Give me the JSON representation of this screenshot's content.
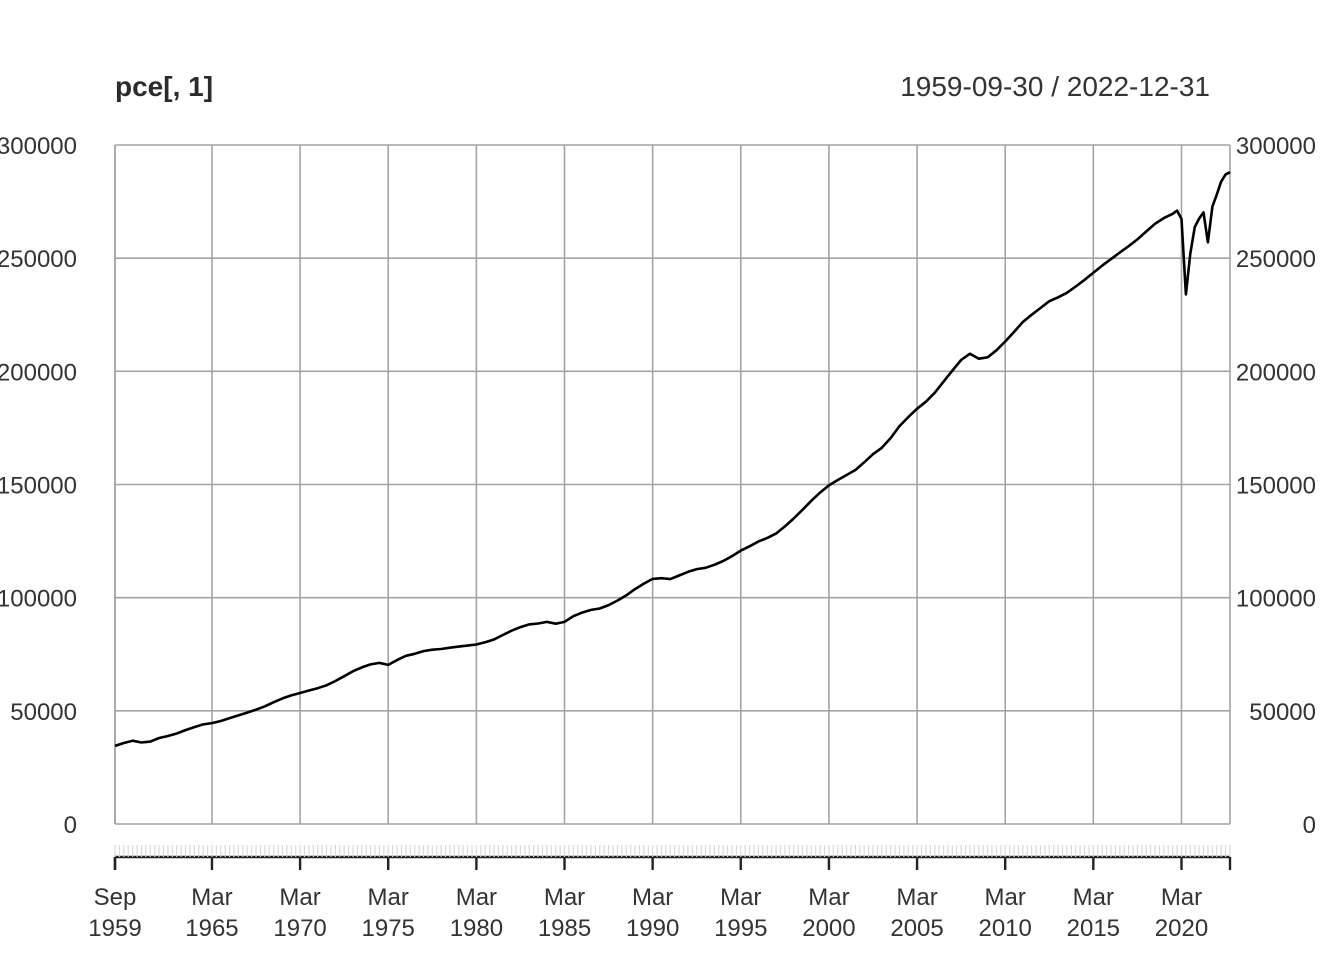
{
  "chart_data": {
    "type": "line",
    "title": "pce[, 1]",
    "date_range_label": "1959-09-30 / 2022-12-31",
    "x_range": [
      "1959-09-30",
      "2022-12-31"
    ],
    "ylim": [
      0,
      300000
    ],
    "y_ticks": [
      {
        "value": 0,
        "left": "0",
        "right": "0"
      },
      {
        "value": 50000,
        "left": "50000",
        "right": "50000"
      },
      {
        "value": 100000,
        "left": "100000",
        "right": "100000"
      },
      {
        "value": 150000,
        "left": "150000",
        "right": "150000"
      },
      {
        "value": 200000,
        "left": "200000",
        "right": "200000"
      },
      {
        "value": 250000,
        "left": "250000",
        "right": "250000"
      },
      {
        "value": 300000,
        "left": "300000",
        "right": "300000"
      }
    ],
    "x_ticks": [
      {
        "date": "1959-09-30",
        "line1": "Sep",
        "line2": "1959"
      },
      {
        "date": "1965-03-31",
        "line1": "Mar",
        "line2": "1965"
      },
      {
        "date": "1970-03-31",
        "line1": "Mar",
        "line2": "1970"
      },
      {
        "date": "1975-03-31",
        "line1": "Mar",
        "line2": "1975"
      },
      {
        "date": "1980-03-31",
        "line1": "Mar",
        "line2": "1980"
      },
      {
        "date": "1985-03-31",
        "line1": "Mar",
        "line2": "1985"
      },
      {
        "date": "1990-03-31",
        "line1": "Mar",
        "line2": "1990"
      },
      {
        "date": "1995-03-31",
        "line1": "Mar",
        "line2": "1995"
      },
      {
        "date": "2000-03-31",
        "line1": "Mar",
        "line2": "2000"
      },
      {
        "date": "2005-03-31",
        "line1": "Mar",
        "line2": "2005"
      },
      {
        "date": "2010-03-31",
        "line1": "Mar",
        "line2": "2010"
      },
      {
        "date": "2015-03-31",
        "line1": "Mar",
        "line2": "2015"
      },
      {
        "date": "2020-03-31",
        "line1": "Mar",
        "line2": "2020"
      }
    ],
    "series": [
      {
        "color": "#000000",
        "points": [
          [
            "1959-09-30",
            34500
          ],
          [
            "1960-03-31",
            35800
          ],
          [
            "1960-09-30",
            36800
          ],
          [
            "1961-03-31",
            36000
          ],
          [
            "1961-09-30",
            36400
          ],
          [
            "1962-03-31",
            38000
          ],
          [
            "1962-09-30",
            38900
          ],
          [
            "1963-03-31",
            40000
          ],
          [
            "1963-09-30",
            41500
          ],
          [
            "1964-03-31",
            42800
          ],
          [
            "1964-09-30",
            44000
          ],
          [
            "1965-03-31",
            44600
          ],
          [
            "1965-09-30",
            45500
          ],
          [
            "1966-03-31",
            46800
          ],
          [
            "1966-09-30",
            48000
          ],
          [
            "1967-03-31",
            49200
          ],
          [
            "1967-09-30",
            50500
          ],
          [
            "1968-03-31",
            52000
          ],
          [
            "1968-09-30",
            53800
          ],
          [
            "1969-03-31",
            55500
          ],
          [
            "1969-09-30",
            56800
          ],
          [
            "1970-03-31",
            57900
          ],
          [
            "1970-09-30",
            59000
          ],
          [
            "1971-03-31",
            60000
          ],
          [
            "1971-09-30",
            61300
          ],
          [
            "1972-03-31",
            63200
          ],
          [
            "1972-09-30",
            65300
          ],
          [
            "1973-03-31",
            67500
          ],
          [
            "1973-09-30",
            69200
          ],
          [
            "1974-03-31",
            70500
          ],
          [
            "1974-09-30",
            71200
          ],
          [
            "1975-03-31",
            70300
          ],
          [
            "1975-09-30",
            72400
          ],
          [
            "1976-03-31",
            74300
          ],
          [
            "1976-09-30",
            75200
          ],
          [
            "1977-03-31",
            76400
          ],
          [
            "1977-09-30",
            77000
          ],
          [
            "1978-03-31",
            77300
          ],
          [
            "1978-09-30",
            77900
          ],
          [
            "1979-03-31",
            78400
          ],
          [
            "1979-09-30",
            78800
          ],
          [
            "1980-03-31",
            79300
          ],
          [
            "1980-09-30",
            80300
          ],
          [
            "1981-03-31",
            81500
          ],
          [
            "1981-09-30",
            83500
          ],
          [
            "1982-03-31",
            85400
          ],
          [
            "1982-09-30",
            87000
          ],
          [
            "1983-03-31",
            88200
          ],
          [
            "1983-09-30",
            88600
          ],
          [
            "1984-03-31",
            89300
          ],
          [
            "1984-09-30",
            88500
          ],
          [
            "1985-03-31",
            89300
          ],
          [
            "1985-09-30",
            91800
          ],
          [
            "1986-03-31",
            93400
          ],
          [
            "1986-09-30",
            94600
          ],
          [
            "1987-03-31",
            95200
          ],
          [
            "1987-09-30",
            96700
          ],
          [
            "1988-03-31",
            98700
          ],
          [
            "1988-09-30",
            101000
          ],
          [
            "1989-03-31",
            103800
          ],
          [
            "1989-09-30",
            106200
          ],
          [
            "1990-03-31",
            108300
          ],
          [
            "1990-09-30",
            108600
          ],
          [
            "1991-03-31",
            108200
          ],
          [
            "1991-09-30",
            109800
          ],
          [
            "1992-03-31",
            111400
          ],
          [
            "1992-09-30",
            112600
          ],
          [
            "1993-03-31",
            113200
          ],
          [
            "1993-09-30",
            114500
          ],
          [
            "1994-03-31",
            116200
          ],
          [
            "1994-09-30",
            118300
          ],
          [
            "1995-03-31",
            120800
          ],
          [
            "1995-09-30",
            122700
          ],
          [
            "1996-03-31",
            124800
          ],
          [
            "1996-09-30",
            126400
          ],
          [
            "1997-03-31",
            128300
          ],
          [
            "1997-09-30",
            131500
          ],
          [
            "1998-03-31",
            135000
          ],
          [
            "1998-09-30",
            138800
          ],
          [
            "1999-03-31",
            142800
          ],
          [
            "1999-09-30",
            146400
          ],
          [
            "2000-03-31",
            149600
          ],
          [
            "2000-09-30",
            152000
          ],
          [
            "2001-03-31",
            154200
          ],
          [
            "2001-09-30",
            156400
          ],
          [
            "2002-03-31",
            159800
          ],
          [
            "2002-09-30",
            163400
          ],
          [
            "2003-03-31",
            166200
          ],
          [
            "2003-09-30",
            170500
          ],
          [
            "2004-03-31",
            175800
          ],
          [
            "2004-09-30",
            179800
          ],
          [
            "2005-03-31",
            183500
          ],
          [
            "2005-09-30",
            186600
          ],
          [
            "2006-03-31",
            190500
          ],
          [
            "2006-09-30",
            195400
          ],
          [
            "2007-03-31",
            200300
          ],
          [
            "2007-09-30",
            205000
          ],
          [
            "2008-03-31",
            207800
          ],
          [
            "2008-09-30",
            205600
          ],
          [
            "2009-03-31",
            206200
          ],
          [
            "2009-09-30",
            209300
          ],
          [
            "2010-03-31",
            213200
          ],
          [
            "2010-09-30",
            217400
          ],
          [
            "2011-03-31",
            221800
          ],
          [
            "2011-09-30",
            225000
          ],
          [
            "2012-03-31",
            228000
          ],
          [
            "2012-09-30",
            231000
          ],
          [
            "2013-03-31",
            232700
          ],
          [
            "2013-09-30",
            234700
          ],
          [
            "2014-03-31",
            237500
          ],
          [
            "2014-09-30",
            240400
          ],
          [
            "2015-03-31",
            243600
          ],
          [
            "2015-09-30",
            246700
          ],
          [
            "2016-03-31",
            249600
          ],
          [
            "2016-09-30",
            252500
          ],
          [
            "2017-03-31",
            255300
          ],
          [
            "2017-09-30",
            258300
          ],
          [
            "2018-03-31",
            261800
          ],
          [
            "2018-09-30",
            265200
          ],
          [
            "2019-03-31",
            267700
          ],
          [
            "2019-09-30",
            269600
          ],
          [
            "2019-12-31",
            271000
          ],
          [
            "2020-03-31",
            267300
          ],
          [
            "2020-06-30",
            234000
          ],
          [
            "2020-09-30",
            252000
          ],
          [
            "2020-12-31",
            263800
          ],
          [
            "2021-03-31",
            267500
          ],
          [
            "2021-06-30",
            270200
          ],
          [
            "2021-09-30",
            257000
          ],
          [
            "2021-12-31",
            272800
          ],
          [
            "2022-03-31",
            278000
          ],
          [
            "2022-06-30",
            283800
          ],
          [
            "2022-09-30",
            287000
          ],
          [
            "2022-12-31",
            288000
          ]
        ]
      }
    ],
    "grid": true,
    "legend": false
  }
}
